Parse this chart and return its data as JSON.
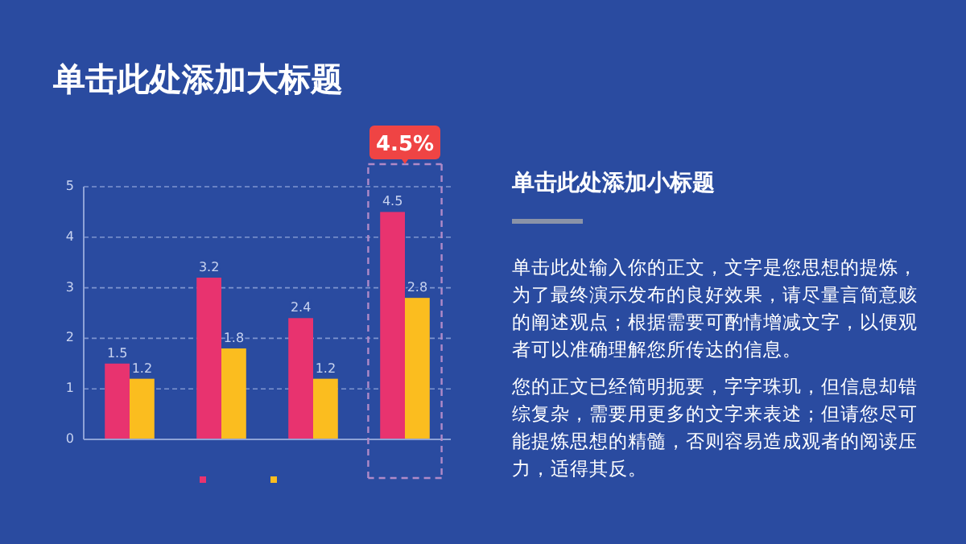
{
  "chart_data": {
    "type": "bar",
    "title": "单击此处添加大标题",
    "subtitle": "单击此处添加小标题",
    "categories": [
      null,
      null,
      null,
      null
    ],
    "series": [
      {
        "color": "#e8336f",
        "values": [
          1.5,
          3.2,
          2.4,
          4.5
        ]
      },
      {
        "color": "#fbbd1f",
        "values": [
          1.2,
          1.8,
          1.2,
          2.8
        ]
      }
    ],
    "ylim": [
      0,
      5
    ],
    "yticks": [
      0,
      1,
      2,
      3,
      4,
      5
    ],
    "grid": "y",
    "data_labels": true,
    "legend": false,
    "annotations": [
      "4.5%",
      "单击此处输入你的正文，文字是您思想的提炼，为了最终演示发布的良好效果，请尽量言简意赅的阐述观点；根据需要可酌情增减文字，以便观者可以准确理解您所传达的信息。",
      "您的正文已经简明扼要，字字珠玑，但信息却错综复杂，需要用更多的文字来表述；但请您尽可能提炼思想的精髓，否则容易造成观者的阅读压力，适得其反。"
    ]
  }
}
